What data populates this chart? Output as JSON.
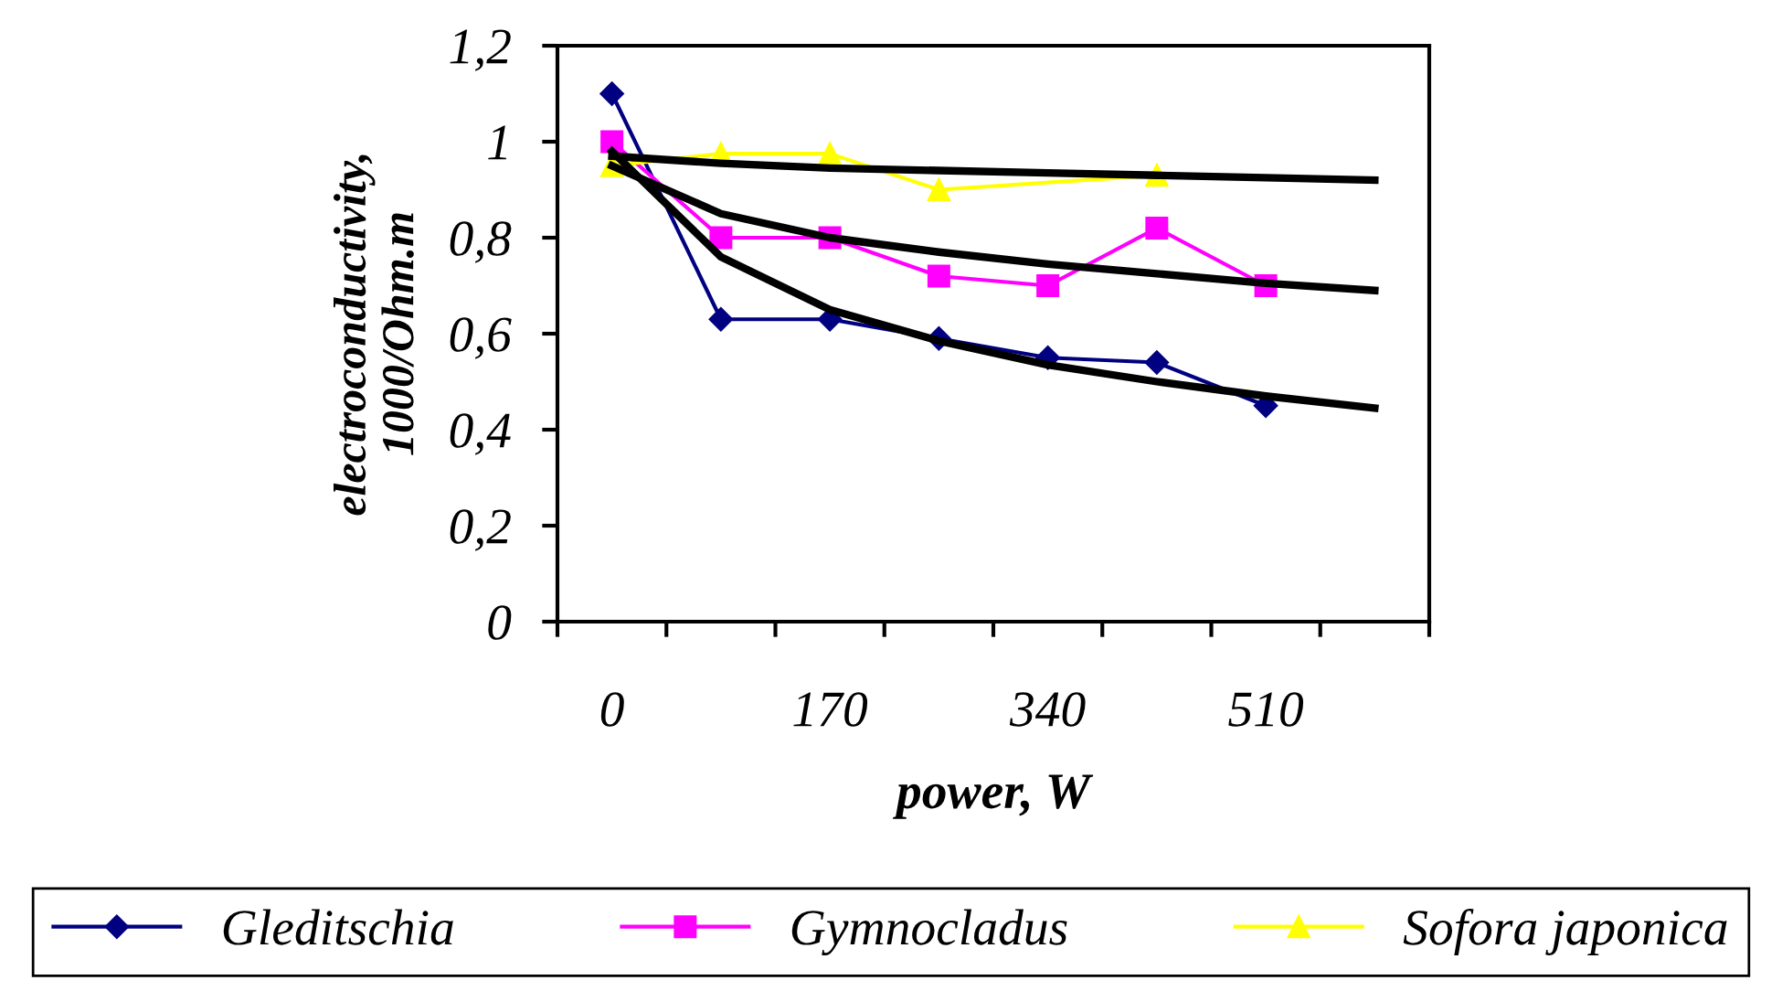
{
  "chart_data": {
    "type": "line",
    "xlabel": "power, W",
    "ylabel": "electroconductivity,\n1000/Ohm.m",
    "categories": [
      "0",
      null,
      "170",
      null,
      "340",
      null,
      "510",
      null
    ],
    "series": [
      {
        "name": "Gleditschia",
        "color": "#000080",
        "marker": "diamond",
        "values": [
          1.1,
          0.63,
          0.63,
          0.59,
          0.55,
          0.54,
          0.45,
          null
        ]
      },
      {
        "name": "Gymnocladus",
        "color": "#ff00ff",
        "marker": "square",
        "values": [
          1.0,
          0.8,
          0.8,
          0.72,
          0.7,
          0.82,
          0.7,
          null
        ]
      },
      {
        "name": "Sofora japonica",
        "color": "#ffff00",
        "marker": "triangle",
        "values": [
          0.95,
          0.975,
          0.975,
          0.9,
          null,
          0.93,
          null,
          null
        ]
      },
      {
        "color": "#000000",
        "marker": "none",
        "values": [
          0.97,
          0.955,
          0.945,
          0.94,
          0.935,
          0.93,
          0.925,
          0.92
        ]
      },
      {
        "color": "#000000",
        "marker": "none",
        "values": [
          0.95,
          0.85,
          0.8,
          0.77,
          0.745,
          0.725,
          0.705,
          0.69
        ]
      },
      {
        "color": "#000000",
        "marker": "none",
        "values": [
          0.98,
          0.76,
          0.65,
          0.585,
          0.535,
          0.5,
          0.47,
          0.445
        ]
      }
    ],
    "ylim": [
      0,
      1.2
    ],
    "yticks": [
      0,
      {
        "value": 0.2,
        "label": "0,2"
      },
      {
        "value": 0.4,
        "label": "0,4"
      },
      {
        "value": 0.6,
        "label": "0,6"
      },
      {
        "value": 0.8,
        "label": "0,8"
      },
      1,
      {
        "value": 1.2,
        "label": "1,2"
      }
    ],
    "grid": false,
    "legend": "bottom"
  }
}
